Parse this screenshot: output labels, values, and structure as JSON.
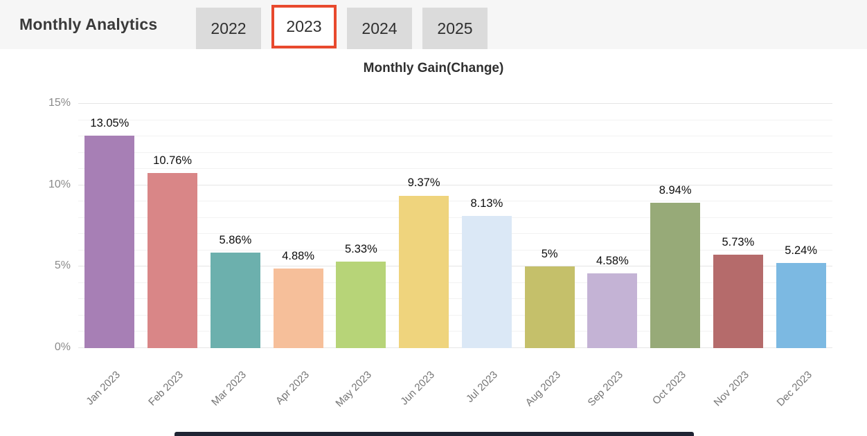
{
  "header": {
    "title": "Monthly Analytics",
    "tabs": [
      {
        "label": "2022",
        "active": false
      },
      {
        "label": "2023",
        "active": true
      },
      {
        "label": "2024",
        "active": false
      },
      {
        "label": "2025",
        "active": false
      }
    ]
  },
  "chart_data": {
    "type": "bar",
    "title": "Monthly Gain(Change)",
    "categories": [
      "Jan 2023",
      "Feb 2023",
      "Mar 2023",
      "Apr 2023",
      "May 2023",
      "Jun 2023",
      "Jul 2023",
      "Aug 2023",
      "Sep 2023",
      "Oct 2023",
      "Nov 2023",
      "Dec 2023"
    ],
    "values": [
      13.05,
      10.76,
      5.86,
      4.88,
      5.33,
      9.37,
      8.13,
      5,
      4.58,
      8.94,
      5.73,
      5.24
    ],
    "value_labels": [
      "13.05%",
      "10.76%",
      "5.86%",
      "4.88%",
      "5.33%",
      "9.37%",
      "8.13%",
      "5%",
      "4.58%",
      "8.94%",
      "5.73%",
      "5.24%"
    ],
    "bar_colors": [
      "#a77fb5",
      "#d98687",
      "#6cb0ad",
      "#f6bf9a",
      "#b7d478",
      "#efd47d",
      "#dbe8f6",
      "#c5c06a",
      "#c4b3d5",
      "#97aa78",
      "#b56b6b",
      "#7cb9e2"
    ],
    "xlabel": "",
    "ylabel": "",
    "ylim": [
      0,
      15
    ],
    "y_tick_values": [
      0,
      5,
      10,
      15
    ],
    "y_tick_labels": [
      "0%",
      "5%",
      "10%",
      "15%"
    ],
    "minor_grid_step": 1,
    "grid": true,
    "legend": false
  },
  "colors": {
    "header_bg": "#f6f6f6",
    "tab_bg": "#dbdbdb",
    "active_tab_bg": "#ffffff",
    "active_tab_border": "#e8492d",
    "footer_bar": "#1f2433"
  }
}
